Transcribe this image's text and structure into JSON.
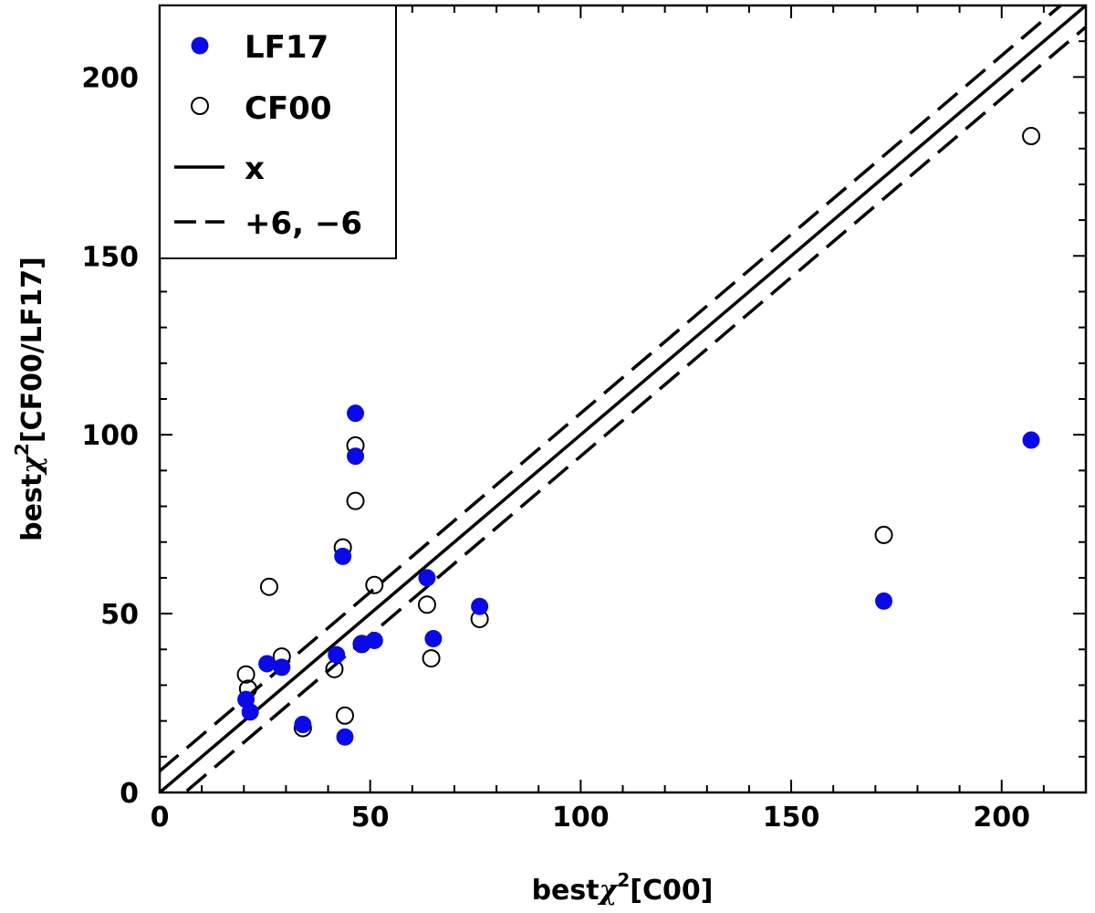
{
  "chart_data": {
    "type": "scatter",
    "xlabel_main": "best",
    "xlabel_symbol": "χ",
    "xlabel_sup": "2",
    "xlabel_suffix": "[C00]",
    "ylabel_main": "best",
    "ylabel_symbol": "χ",
    "ylabel_sup": "2",
    "ylabel_suffix": "[CF00/LF17]",
    "xlim": [
      0,
      220
    ],
    "ylim": [
      0,
      220
    ],
    "x_ticks": [
      0,
      50,
      100,
      150,
      200
    ],
    "y_ticks": [
      0,
      50,
      100,
      150,
      200
    ],
    "x_tick_labels": [
      "0",
      "50",
      "100",
      "150",
      "200"
    ],
    "y_tick_labels": [
      "0",
      "50",
      "100",
      "150",
      "200"
    ],
    "x_minor_step": 10,
    "y_minor_step": 10,
    "legend_position": "top-left",
    "series": [
      {
        "name": "LF17",
        "marker": "filled-circle",
        "color": "#0a0ae6",
        "points": [
          [
            20.5,
            26
          ],
          [
            21.5,
            22.5
          ],
          [
            25.5,
            36
          ],
          [
            29,
            35
          ],
          [
            34,
            19
          ],
          [
            42,
            38.5
          ],
          [
            43.5,
            66
          ],
          [
            44,
            15.5
          ],
          [
            46.5,
            106
          ],
          [
            46.5,
            94
          ],
          [
            48,
            41.5
          ],
          [
            51,
            42.5
          ],
          [
            63.5,
            60
          ],
          [
            65,
            43
          ],
          [
            76,
            52
          ],
          [
            172,
            53.5
          ],
          [
            207,
            98.5
          ]
        ]
      },
      {
        "name": "CF00",
        "marker": "open-circle",
        "color": "#000000",
        "points": [
          [
            20.5,
            33
          ],
          [
            21,
            29
          ],
          [
            26,
            57.5
          ],
          [
            29,
            38
          ],
          [
            34,
            18
          ],
          [
            41.5,
            34.5
          ],
          [
            43.5,
            68.5
          ],
          [
            44,
            21.5
          ],
          [
            46.5,
            97
          ],
          [
            46.5,
            81.5
          ],
          [
            48,
            41.5
          ],
          [
            51,
            58
          ],
          [
            63.5,
            52.5
          ],
          [
            64.5,
            37.5
          ],
          [
            76,
            48.5
          ],
          [
            172,
            72
          ],
          [
            207,
            183.5
          ]
        ]
      }
    ],
    "lines": [
      {
        "name": "x",
        "offset": 0,
        "style": "solid"
      },
      {
        "name": "+6,−6",
        "offset": 6,
        "style": "dashed"
      },
      {
        "name": "+6,−6 lower",
        "offset": -6,
        "style": "dashed"
      }
    ],
    "legend": [
      {
        "label": "LF17",
        "marker": "filled-circle"
      },
      {
        "label": "CF00",
        "marker": "open-circle"
      },
      {
        "label": "x",
        "marker": "solid-line"
      },
      {
        "label": "+6, −6",
        "marker": "dashed-line"
      }
    ]
  }
}
